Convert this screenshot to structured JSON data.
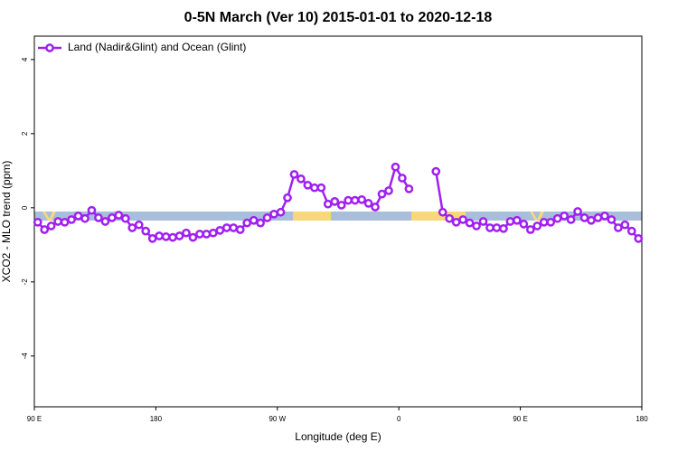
{
  "chart_data": {
    "type": "line",
    "title": "0-5N March (Ver 10)   2015-01-01 to 2020-12-18",
    "x_label": "Longitude (deg E)",
    "y_label": "XCO2 - MLO trend (ppm)",
    "x": [
      92.5,
      97.5,
      102.5,
      107.5,
      112.5,
      117.5,
      122.5,
      127.5,
      132.5,
      137.5,
      142.5,
      147.5,
      152.5,
      157.5,
      162.5,
      167.5,
      172.5,
      177.5,
      182.5,
      187.5,
      192.5,
      197.5,
      202.5,
      207.5,
      212.5,
      217.5,
      222.5,
      227.5,
      232.5,
      237.5,
      242.5,
      247.5,
      252.5,
      257.5,
      262.5,
      267.5,
      272.5,
      277.5,
      282.5,
      287.5,
      292.5,
      297.5,
      302.5,
      307.5,
      312.5,
      317.5,
      322.5,
      327.5,
      332.5,
      337.5,
      342.5,
      347.5,
      352.5,
      357.5,
      362.5,
      367.5,
      372.5,
      377.5,
      382.5,
      387.5,
      392.5,
      397.5,
      402.5,
      407.5,
      412.5,
      417.5,
      422.5,
      427.5,
      432.5,
      437.5,
      442.5,
      447.5,
      452.5,
      457.5,
      462.5,
      467.5,
      472.5,
      477.5,
      482.5,
      487.5,
      492.5,
      497.5,
      502.5,
      507.5,
      512.5,
      517.5,
      522.5,
      527.5,
      532.5,
      537.5
    ],
    "series": [
      {
        "name": "Land (Nadir&Glint) and Ocean (Glint)",
        "color": "#a020f0",
        "values": [
          -0.39,
          -0.59,
          -0.49,
          -0.37,
          -0.39,
          -0.32,
          -0.22,
          -0.29,
          -0.07,
          -0.27,
          -0.37,
          -0.27,
          -0.2,
          -0.29,
          -0.54,
          -0.46,
          -0.63,
          -0.83,
          -0.76,
          -0.78,
          -0.8,
          -0.76,
          -0.68,
          -0.8,
          -0.71,
          -0.71,
          -0.68,
          -0.61,
          -0.54,
          -0.54,
          -0.59,
          -0.41,
          -0.34,
          -0.41,
          -0.27,
          -0.17,
          -0.12,
          0.27,
          0.9,
          0.78,
          0.61,
          0.54,
          0.54,
          0.1,
          0.17,
          0.07,
          0.2,
          0.2,
          0.22,
          0.12,
          0.02,
          0.37,
          0.46,
          1.1,
          0.8,
          0.51,
          null,
          null,
          null,
          0.98,
          -0.12,
          -0.29,
          -0.39,
          -0.32,
          -0.41,
          -0.49,
          -0.37,
          -0.54,
          -0.54,
          -0.56,
          -0.37,
          -0.34,
          -0.44,
          -0.59,
          -0.49,
          -0.39,
          -0.39,
          -0.29,
          -0.22,
          -0.32,
          -0.1,
          -0.27,
          -0.34,
          -0.27,
          -0.22,
          -0.32,
          -0.54,
          -0.46,
          -0.63,
          -0.83
        ]
      }
    ],
    "xlim": [
      90,
      540
    ],
    "xticks": [
      {
        "value": 90,
        "label": "90 E"
      },
      180,
      {
        "value": 270,
        "label": "90 W"
      },
      {
        "value": 360,
        "label": "0"
      },
      {
        "value": 450,
        "label": "90 E"
      },
      {
        "value": 540,
        "label": "180"
      }
    ],
    "ylim": [
      -5.37,
      4.63
    ],
    "yticks": [
      -4,
      -2,
      0,
      2,
      4
    ],
    "legend": "upper left",
    "grid": false
  }
}
